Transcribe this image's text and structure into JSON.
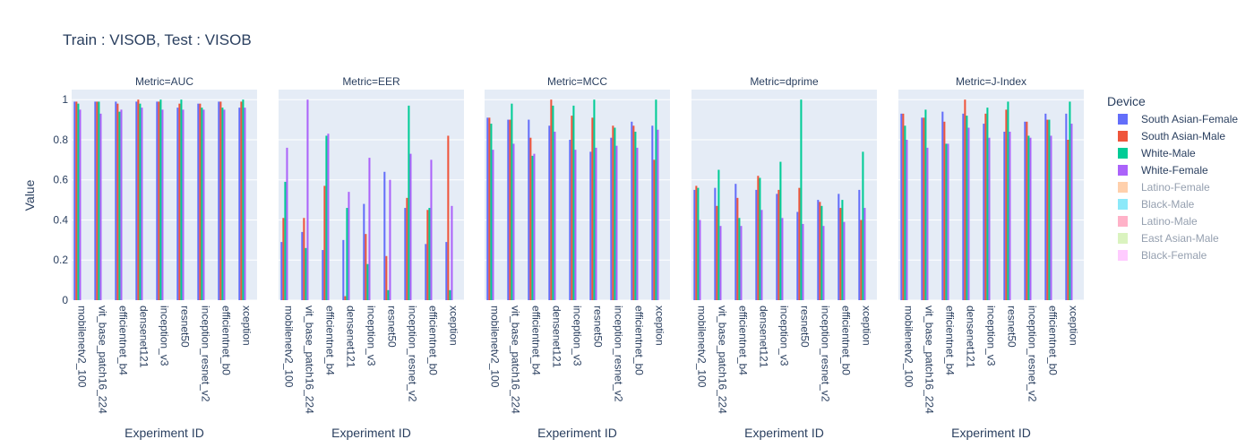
{
  "chart_data": {
    "type": "bar",
    "title": "Train : VISOB, Test : VISOB",
    "ylabel": "Value",
    "xlabel": "Experiment ID",
    "ylim": [
      0,
      1.05
    ],
    "yticks": [
      "0",
      "0.2",
      "0.4",
      "0.6",
      "0.8",
      "1"
    ],
    "grid": true,
    "legend_title": "Device",
    "legend_position": "right",
    "series": [
      {
        "name": "South Asian-Female",
        "color": "#636efa",
        "visible": true
      },
      {
        "name": "South Asian-Male",
        "color": "#EF553B",
        "visible": true
      },
      {
        "name": "White-Male",
        "color": "#00cc96",
        "visible": true
      },
      {
        "name": "White-Female",
        "color": "#ab63fa",
        "visible": true
      },
      {
        "name": "Latino-Female",
        "color": "#FFA15A",
        "visible": false
      },
      {
        "name": "Black-Male",
        "color": "#19d3f3",
        "visible": false
      },
      {
        "name": "Latino-Male",
        "color": "#FF6692",
        "visible": false
      },
      {
        "name": "East Asian-Male",
        "color": "#B6E880",
        "visible": false
      },
      {
        "name": "Black-Female",
        "color": "#FF97FF",
        "visible": false
      }
    ],
    "panels": [
      {
        "metric": "Metric=AUC",
        "categories": [
          "mobilenetv2_100",
          "vit_base_patch16_224",
          "efficientnet_b4",
          "densenet121",
          "inception_v3",
          "resnet50",
          "inception_resnet_v2",
          "efficientnet_b0",
          "xception"
        ],
        "values": {
          "South Asian-Female": [
            0.99,
            0.99,
            0.99,
            0.99,
            0.99,
            0.96,
            0.98,
            0.99,
            0.96
          ],
          "South Asian-Male": [
            0.99,
            0.99,
            0.98,
            1.0,
            0.99,
            0.98,
            0.98,
            0.99,
            0.99
          ],
          "White-Male": [
            0.98,
            0.99,
            0.94,
            0.98,
            1.0,
            1.0,
            0.96,
            0.96,
            1.0
          ],
          "White-Female": [
            0.95,
            0.93,
            0.95,
            0.96,
            0.95,
            0.95,
            0.95,
            0.95,
            0.96
          ]
        }
      },
      {
        "metric": "Metric=EER",
        "categories": [
          "mobilenetv2_100",
          "vit_base_patch16_224",
          "efficientnet_b4",
          "densenet121",
          "inception_v3",
          "resnet50",
          "inception_resnet_v2",
          "efficientnet_b0",
          "xception"
        ],
        "values": {
          "South Asian-Female": [
            0.29,
            0.34,
            0.25,
            0.3,
            0.48,
            0.64,
            0.46,
            0.28,
            0.29
          ],
          "South Asian-Male": [
            0.41,
            0.41,
            0.57,
            0.02,
            0.33,
            0.22,
            0.51,
            0.45,
            0.82
          ],
          "White-Male": [
            0.59,
            0.26,
            0.82,
            0.46,
            0.18,
            0.05,
            0.97,
            0.46,
            0.05
          ],
          "White-Female": [
            0.76,
            1.0,
            0.83,
            0.54,
            0.71,
            0.6,
            0.73,
            0.7,
            0.47
          ]
        }
      },
      {
        "metric": "Metric=MCC",
        "categories": [
          "mobilenetv2_100",
          "vit_base_patch16_224",
          "efficientnet_b4",
          "densenet121",
          "inception_v3",
          "resnet50",
          "inception_resnet_v2",
          "efficientnet_b0",
          "xception"
        ],
        "values": {
          "South Asian-Female": [
            0.91,
            0.9,
            0.9,
            0.87,
            0.8,
            0.74,
            0.81,
            0.89,
            0.87
          ],
          "South Asian-Male": [
            0.91,
            0.9,
            0.81,
            1.0,
            0.92,
            0.91,
            0.87,
            0.87,
            0.7
          ],
          "White-Male": [
            0.88,
            0.98,
            0.72,
            0.97,
            0.97,
            1.0,
            0.86,
            0.84,
            1.0
          ],
          "White-Female": [
            0.75,
            0.78,
            0.73,
            0.84,
            0.75,
            0.76,
            0.77,
            0.76,
            0.85
          ]
        }
      },
      {
        "metric": "Metric=dprime",
        "categories": [
          "mobilenetv2_100",
          "vit_base_patch16_224",
          "efficientnet_b4",
          "densenet121",
          "inception_v3",
          "resnet50",
          "inception_resnet_v2",
          "efficientnet_b0",
          "xception"
        ],
        "values": {
          "South Asian-Female": [
            0.55,
            0.56,
            0.58,
            0.55,
            0.53,
            0.44,
            0.5,
            0.53,
            0.55
          ],
          "South Asian-Male": [
            0.57,
            0.47,
            0.51,
            0.62,
            0.55,
            0.56,
            0.49,
            0.46,
            0.4
          ],
          "White-Male": [
            0.56,
            0.65,
            0.41,
            0.61,
            0.69,
            1.0,
            0.47,
            0.5,
            0.74
          ],
          "White-Female": [
            0.4,
            0.37,
            0.37,
            0.45,
            0.41,
            0.38,
            0.37,
            0.39,
            0.46
          ]
        }
      },
      {
        "metric": "Metric=J-Index",
        "categories": [
          "mobilenetv2_100",
          "vit_base_patch16_224",
          "efficientnet_b4",
          "densenet121",
          "inception_v3",
          "resnet50",
          "inception_resnet_v2",
          "efficientnet_b0",
          "xception"
        ],
        "values": {
          "South Asian-Female": [
            0.93,
            0.91,
            0.94,
            0.93,
            0.88,
            0.84,
            0.89,
            0.93,
            0.93
          ],
          "South Asian-Male": [
            0.93,
            0.91,
            0.89,
            1.0,
            0.93,
            0.95,
            0.89,
            0.9,
            0.8
          ],
          "White-Male": [
            0.87,
            0.95,
            0.78,
            0.92,
            0.96,
            0.99,
            0.82,
            0.9,
            0.99
          ],
          "White-Female": [
            0.8,
            0.76,
            0.78,
            0.86,
            0.81,
            0.84,
            0.81,
            0.82,
            0.88
          ]
        }
      }
    ]
  }
}
